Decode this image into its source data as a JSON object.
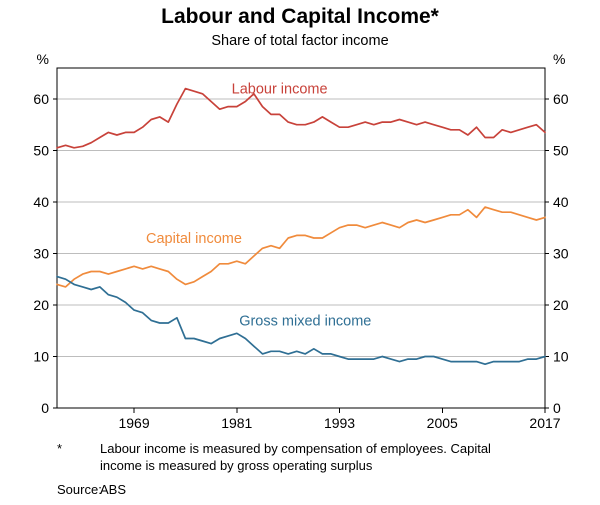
{
  "title": "Labour and Capital Income*",
  "subtitle": "Share of total factor income",
  "footnote": {
    "marker": "*",
    "text": "Labour income is measured by compensation of employees. Capital income is measured by gross operating surplus"
  },
  "source": {
    "label": "Source:",
    "text": "ABS"
  },
  "chart_data": {
    "type": "line",
    "title": "Labour and Capital Income",
    "subtitle": "Share of total factor income",
    "unit_left": "%",
    "unit_right": "%",
    "x_start": 1960,
    "x_step": 1,
    "xlim": [
      1960,
      2017
    ],
    "ylim": [
      0,
      66
    ],
    "xticks": [
      1969,
      1981,
      1993,
      2005,
      2017
    ],
    "yticks": [
      0,
      10,
      20,
      30,
      40,
      50,
      60
    ],
    "grid": "horizontal",
    "legend_position": "inline-labels",
    "series": [
      {
        "name": "Labour income",
        "color": "#c8423a",
        "label_pos": {
          "x": 1986,
          "y": 62
        },
        "values": [
          50.5,
          51.0,
          50.5,
          50.8,
          51.5,
          52.5,
          53.5,
          53.0,
          53.5,
          53.5,
          54.5,
          56.0,
          56.5,
          55.5,
          59.0,
          62.0,
          61.5,
          61.0,
          59.5,
          58.0,
          58.5,
          58.5,
          59.5,
          61.0,
          58.5,
          57.0,
          57.0,
          55.5,
          55.0,
          55.0,
          55.5,
          56.5,
          55.5,
          54.5,
          54.5,
          55.0,
          55.5,
          55.0,
          55.5,
          55.5,
          56.0,
          55.5,
          55.0,
          55.5,
          55.0,
          54.5,
          54.0,
          54.0,
          53.0,
          54.5,
          52.5,
          52.5,
          54.0,
          53.5,
          54.0,
          54.5,
          55.0,
          53.5
        ]
      },
      {
        "name": "Capital income",
        "color": "#f08b3c",
        "label_pos": {
          "x": 1976,
          "y": 33
        },
        "values": [
          24.0,
          23.5,
          25.0,
          26.0,
          26.5,
          26.5,
          26.0,
          26.5,
          27.0,
          27.5,
          27.0,
          27.5,
          27.0,
          26.5,
          25.0,
          24.0,
          24.5,
          25.5,
          26.5,
          28.0,
          28.0,
          28.5,
          28.0,
          29.5,
          31.0,
          31.5,
          31.0,
          33.0,
          33.5,
          33.5,
          33.0,
          33.0,
          34.0,
          35.0,
          35.5,
          35.5,
          35.0,
          35.5,
          36.0,
          35.5,
          35.0,
          36.0,
          36.5,
          36.0,
          36.5,
          37.0,
          37.5,
          37.5,
          38.5,
          37.0,
          39.0,
          38.5,
          38.0,
          38.0,
          37.5,
          37.0,
          36.5,
          37.0
        ]
      },
      {
        "name": "Gross mixed income",
        "color": "#2f6f94",
        "label_pos": {
          "x": 1989,
          "y": 17
        },
        "values": [
          25.5,
          25.0,
          24.0,
          23.5,
          23.0,
          23.5,
          22.0,
          21.5,
          20.5,
          19.0,
          18.5,
          17.0,
          16.5,
          16.5,
          17.5,
          13.5,
          13.5,
          13.0,
          12.5,
          13.5,
          14.0,
          14.5,
          13.5,
          12.0,
          10.5,
          11.0,
          11.0,
          10.5,
          11.0,
          10.5,
          11.5,
          10.5,
          10.5,
          10.0,
          9.5,
          9.5,
          9.5,
          9.5,
          10.0,
          9.5,
          9.0,
          9.5,
          9.5,
          10.0,
          10.0,
          9.5,
          9.0,
          9.0,
          9.0,
          9.0,
          8.5,
          9.0,
          9.0,
          9.0,
          9.0,
          9.5,
          9.5,
          10.0
        ]
      }
    ],
    "style": {
      "grid_color": "#bdbdbd",
      "axis_color": "#000000",
      "background": "#ffffff"
    }
  }
}
